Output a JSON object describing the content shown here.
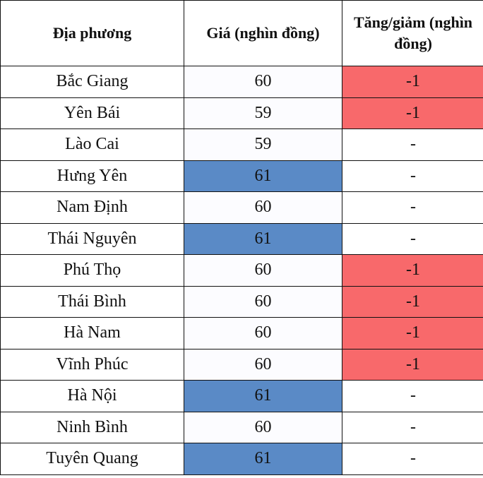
{
  "colors": {
    "decrease": "#f8696b",
    "highest_price": "#5a8ac6",
    "price_default": "#fcfcff"
  },
  "table": {
    "headers": [
      "Địa phương",
      "Giá (nghìn đồng)",
      "Tăng/giảm (nghìn đồng)"
    ],
    "rows": [
      {
        "province": "Bắc Giang",
        "price": "60",
        "change": "-1"
      },
      {
        "province": "Yên Bái",
        "price": "59",
        "change": "-1"
      },
      {
        "province": "Lào Cai",
        "price": "59",
        "change": "-"
      },
      {
        "province": "Hưng Yên",
        "price": "61",
        "change": "-"
      },
      {
        "province": "Nam Định",
        "price": "60",
        "change": "-"
      },
      {
        "province": "Thái Nguyên",
        "price": "61",
        "change": "-"
      },
      {
        "province": "Phú Thọ",
        "price": "60",
        "change": "-1"
      },
      {
        "province": "Thái Bình",
        "price": "60",
        "change": "-1"
      },
      {
        "province": "Hà Nam",
        "price": "60",
        "change": "-1"
      },
      {
        "province": "Vĩnh Phúc",
        "price": "60",
        "change": "-1"
      },
      {
        "province": "Hà Nội",
        "price": "61",
        "change": "-"
      },
      {
        "province": "Ninh Bình",
        "price": "60",
        "change": "-"
      },
      {
        "province": "Tuyên Quang",
        "price": "61",
        "change": "-"
      }
    ]
  }
}
